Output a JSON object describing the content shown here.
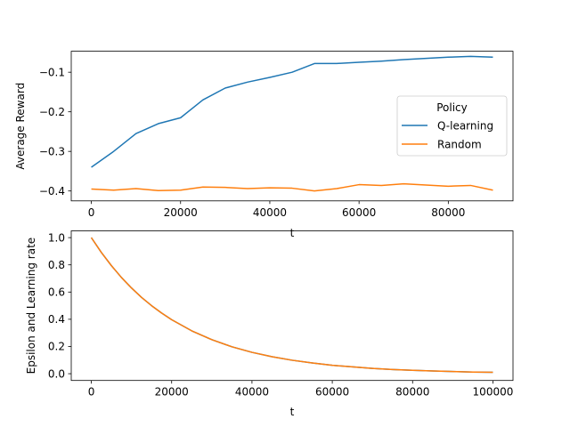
{
  "chart_data": [
    {
      "type": "line",
      "title": "",
      "xlabel": "t",
      "ylabel": "Average Reward",
      "xlim": [
        -4500,
        94500
      ],
      "ylim": [
        -0.425,
        -0.047
      ],
      "xticks": [
        0,
        20000,
        40000,
        60000,
        80000
      ],
      "xtick_labels": [
        "0",
        "20000",
        "40000",
        "60000",
        "80000"
      ],
      "yticks": [
        -0.4,
        -0.3,
        -0.2,
        -0.1
      ],
      "ytick_labels": [
        "−0.4",
        "−0.3",
        "−0.2",
        "−0.1"
      ],
      "grid": false,
      "legend": {
        "title": "Policy",
        "placement": "center-right"
      },
      "series": [
        {
          "name": "Q-learning",
          "color": "#1f77b4",
          "x": [
            0,
            5000,
            10000,
            15000,
            20000,
            25000,
            30000,
            35000,
            40000,
            45000,
            50000,
            55000,
            60000,
            65000,
            70000,
            75000,
            80000,
            85000,
            90000
          ],
          "y": [
            -0.34,
            -0.3,
            -0.255,
            -0.23,
            -0.215,
            -0.17,
            -0.14,
            -0.125,
            -0.113,
            -0.1,
            -0.078,
            -0.078,
            -0.075,
            -0.072,
            -0.068,
            -0.065,
            -0.062,
            -0.06,
            -0.062
          ]
        },
        {
          "name": "Random",
          "color": "#ff7f0e",
          "x": [
            0,
            5000,
            10000,
            15000,
            20000,
            25000,
            30000,
            35000,
            40000,
            45000,
            50000,
            55000,
            60000,
            65000,
            70000,
            75000,
            80000,
            85000,
            90000
          ],
          "y": [
            -0.395,
            -0.398,
            -0.394,
            -0.399,
            -0.398,
            -0.39,
            -0.391,
            -0.394,
            -0.392,
            -0.393,
            -0.4,
            -0.394,
            -0.384,
            -0.386,
            -0.382,
            -0.385,
            -0.388,
            -0.386,
            -0.398
          ]
        }
      ]
    },
    {
      "type": "line",
      "title": "",
      "xlabel": "t",
      "ylabel": "Epsilon and Learning rate",
      "xlim": [
        -5000,
        105000
      ],
      "ylim": [
        -0.0498,
        1.0498
      ],
      "xticks": [
        0,
        20000,
        40000,
        60000,
        80000,
        100000
      ],
      "xtick_labels": [
        "0",
        "20000",
        "40000",
        "60000",
        "80000",
        "100000"
      ],
      "yticks": [
        0.0,
        0.2,
        0.4,
        0.6,
        0.8,
        1.0
      ],
      "ytick_labels": [
        "0.0",
        "0.2",
        "0.4",
        "0.6",
        "0.8",
        "1.0"
      ],
      "grid": false,
      "series": [
        {
          "color": "#1f77b4",
          "x": [
            0,
            2500,
            5000,
            7500,
            10000,
            12500,
            15000,
            17500,
            20000,
            25000,
            30000,
            35000,
            40000,
            45000,
            50000,
            55000,
            60000,
            65000,
            70000,
            75000,
            80000,
            85000,
            90000,
            95000,
            100000
          ],
          "y": [
            1.0,
            0.891,
            0.794,
            0.707,
            0.63,
            0.561,
            0.5,
            0.446,
            0.397,
            0.315,
            0.25,
            0.198,
            0.157,
            0.125,
            0.099,
            0.079,
            0.062,
            0.05,
            0.039,
            0.031,
            0.025,
            0.02,
            0.016,
            0.012,
            0.01
          ]
        },
        {
          "color": "#ff7f0e",
          "x": [
            0,
            2500,
            5000,
            7500,
            10000,
            12500,
            15000,
            17500,
            20000,
            25000,
            30000,
            35000,
            40000,
            45000,
            50000,
            55000,
            60000,
            65000,
            70000,
            75000,
            80000,
            85000,
            90000,
            95000,
            100000
          ],
          "y": [
            1.0,
            0.891,
            0.794,
            0.707,
            0.63,
            0.561,
            0.5,
            0.446,
            0.397,
            0.315,
            0.25,
            0.198,
            0.157,
            0.125,
            0.099,
            0.079,
            0.062,
            0.05,
            0.039,
            0.031,
            0.025,
            0.02,
            0.016,
            0.012,
            0.01
          ]
        }
      ]
    }
  ]
}
